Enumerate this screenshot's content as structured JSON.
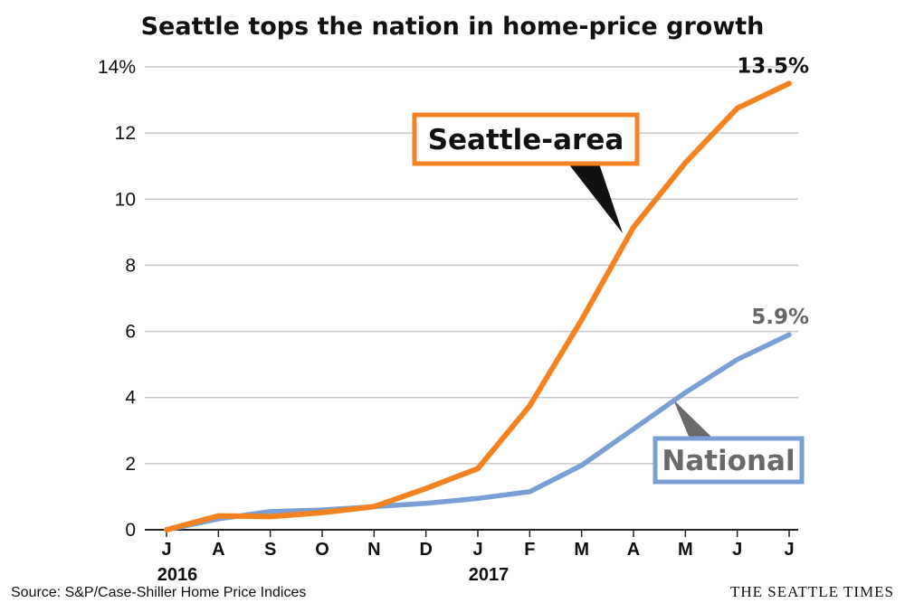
{
  "chart_data": {
    "type": "line",
    "title": "Seattle tops the nation in home-price growth",
    "x": [
      "J",
      "A",
      "S",
      "O",
      "N",
      "D",
      "J",
      "F",
      "M",
      "A",
      "M",
      "J",
      "J"
    ],
    "year_labels": [
      {
        "label": "2016",
        "index": 0
      },
      {
        "label": "2017",
        "index": 6
      }
    ],
    "ylim": [
      0,
      14
    ],
    "y_ticks": [
      {
        "value": 0,
        "label": "0"
      },
      {
        "value": 2,
        "label": "2"
      },
      {
        "value": 4,
        "label": "4"
      },
      {
        "value": 6,
        "label": "6"
      },
      {
        "value": 8,
        "label": "8"
      },
      {
        "value": 10,
        "label": "10"
      },
      {
        "value": 12,
        "label": "12"
      },
      {
        "value": 14,
        "label": "14%"
      }
    ],
    "grid": true,
    "series": [
      {
        "name": "Seattle-area",
        "color": "#f58220",
        "end_label": "13.5%",
        "end_label_color": "#111111",
        "values": [
          0,
          0.42,
          0.4,
          0.52,
          0.7,
          1.25,
          1.85,
          3.75,
          6.35,
          9.15,
          11.1,
          12.75,
          13.5
        ]
      },
      {
        "name": "National",
        "color": "#7b9fd4",
        "end_label": "5.9%",
        "end_label_color": "#666666",
        "values": [
          0,
          0.33,
          0.55,
          0.6,
          0.7,
          0.8,
          0.95,
          1.15,
          1.95,
          3.05,
          4.15,
          5.15,
          5.9
        ]
      }
    ]
  },
  "footer": {
    "source": "Source: S&P/Case-Shiller Home Price Indices",
    "credit": "THE SEATTLE TIMES"
  }
}
